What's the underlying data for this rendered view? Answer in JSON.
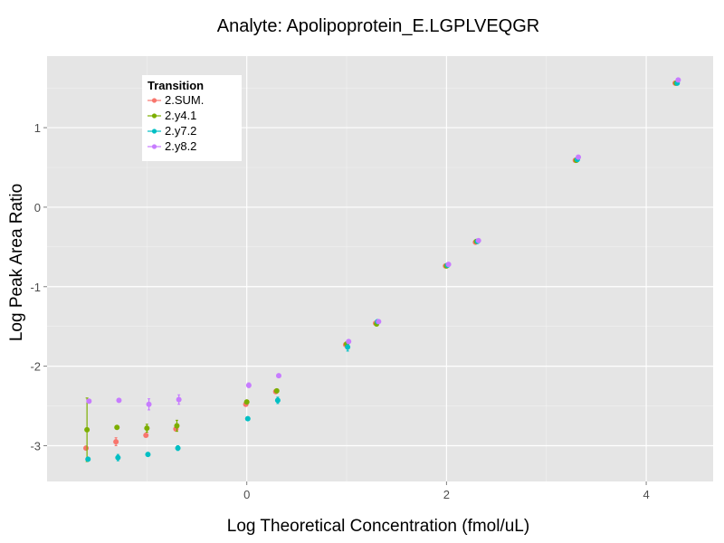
{
  "chart_data": {
    "type": "scatter",
    "title": "Analyte: Apolipoprotein_E.LGPLVEQGR",
    "xlabel": "Log Theoretical Concentration (fmol/uL)",
    "ylabel": "Log Peak Area Ratio",
    "xlim": [
      -2.0,
      4.67
    ],
    "ylim": [
      -3.45,
      1.9
    ],
    "x_ticks": [
      0,
      2,
      4
    ],
    "x_tick_labels": [
      "0",
      "2",
      "4"
    ],
    "y_ticks": [
      1,
      0,
      -1,
      -2,
      -3
    ],
    "y_tick_labels": [
      "1",
      "0",
      "-1",
      "-2",
      "-3"
    ],
    "grid": true,
    "legend": {
      "title": "Transition",
      "placement": "top-left"
    },
    "series": [
      {
        "name": "2.SUM.",
        "color": "#F8766D",
        "points": [
          {
            "x": -1.61,
            "y": -3.03,
            "err": 0.0
          },
          {
            "x": -1.31,
            "y": -2.95,
            "err": 0.05
          },
          {
            "x": -1.01,
            "y": -2.87,
            "err": 0.0
          },
          {
            "x": -0.71,
            "y": -2.79,
            "err": 0.0
          },
          {
            "x": -0.01,
            "y": -2.48,
            "err": 0.0
          },
          {
            "x": 0.29,
            "y": -2.32,
            "err": 0.0
          },
          {
            "x": 0.99,
            "y": -1.73,
            "err": 0.0
          },
          {
            "x": 1.29,
            "y": -1.46,
            "err": 0.0
          },
          {
            "x": 1.99,
            "y": -0.74,
            "err": 0.0
          },
          {
            "x": 2.29,
            "y": -0.44,
            "err": 0.0
          },
          {
            "x": 3.29,
            "y": 0.59,
            "err": 0.0
          },
          {
            "x": 4.29,
            "y": 1.56,
            "err": 0.0
          }
        ]
      },
      {
        "name": "2.y4.1",
        "color": "#7CAE00",
        "points": [
          {
            "x": -1.6,
            "y": -2.8,
            "err": 0.4
          },
          {
            "x": -1.3,
            "y": -2.77,
            "err": 0.0
          },
          {
            "x": -1.0,
            "y": -2.78,
            "err": 0.05
          },
          {
            "x": -0.7,
            "y": -2.75,
            "err": 0.07
          },
          {
            "x": 0.0,
            "y": -2.45,
            "err": 0.0
          },
          {
            "x": 0.3,
            "y": -2.31,
            "err": 0.0
          },
          {
            "x": 1.0,
            "y": -1.72,
            "err": 0.0
          },
          {
            "x": 1.3,
            "y": -1.47,
            "err": 0.0
          },
          {
            "x": 2.0,
            "y": -0.74,
            "err": 0.0
          },
          {
            "x": 2.3,
            "y": -0.43,
            "err": 0.0
          },
          {
            "x": 3.3,
            "y": 0.59,
            "err": 0.0
          },
          {
            "x": 4.3,
            "y": 1.56,
            "err": 0.0
          }
        ]
      },
      {
        "name": "2.y7.2",
        "color": "#00BFC4",
        "points": [
          {
            "x": -1.59,
            "y": -3.17,
            "err": 0.0
          },
          {
            "x": -1.29,
            "y": -3.15,
            "err": 0.04
          },
          {
            "x": -0.99,
            "y": -3.11,
            "err": 0.0
          },
          {
            "x": -0.69,
            "y": -3.03,
            "err": 0.03
          },
          {
            "x": 0.01,
            "y": -2.66,
            "err": 0.0
          },
          {
            "x": 0.31,
            "y": -2.43,
            "err": 0.04
          },
          {
            "x": 1.01,
            "y": -1.76,
            "err": 0.05
          },
          {
            "x": 1.31,
            "y": -1.44,
            "err": 0.0
          },
          {
            "x": 2.01,
            "y": -0.73,
            "err": 0.0
          },
          {
            "x": 2.31,
            "y": -0.43,
            "err": 0.0
          },
          {
            "x": 3.31,
            "y": 0.6,
            "err": 0.0
          },
          {
            "x": 4.31,
            "y": 1.56,
            "err": 0.0
          }
        ]
      },
      {
        "name": "2.y8.2",
        "color": "#C77CFF",
        "points": [
          {
            "x": -1.58,
            "y": -2.44,
            "err": 0.0
          },
          {
            "x": -1.28,
            "y": -2.43,
            "err": 0.0
          },
          {
            "x": -0.98,
            "y": -2.48,
            "err": 0.07
          },
          {
            "x": -0.68,
            "y": -2.42,
            "err": 0.06
          },
          {
            "x": 0.02,
            "y": -2.24,
            "err": 0.03
          },
          {
            "x": 0.32,
            "y": -2.12,
            "err": 0.0
          },
          {
            "x": 1.02,
            "y": -1.69,
            "err": 0.0
          },
          {
            "x": 1.32,
            "y": -1.44,
            "err": 0.0
          },
          {
            "x": 2.02,
            "y": -0.72,
            "err": 0.0
          },
          {
            "x": 2.32,
            "y": -0.42,
            "err": 0.0
          },
          {
            "x": 3.32,
            "y": 0.63,
            "err": 0.0
          },
          {
            "x": 4.32,
            "y": 1.6,
            "err": 0.0
          }
        ]
      }
    ]
  }
}
